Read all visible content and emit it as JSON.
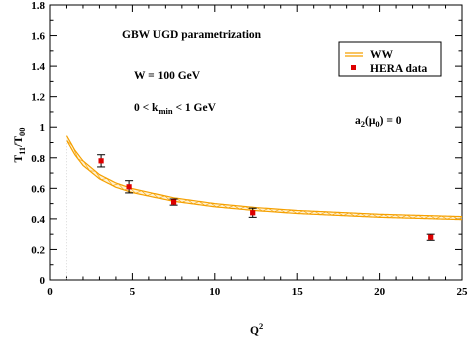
{
  "chart_data": {
    "type": "line",
    "xlim": [
      0,
      25
    ],
    "ylim": [
      0,
      1.8
    ],
    "xticks": [
      0,
      5,
      10,
      15,
      20,
      25
    ],
    "yticks": [
      0,
      0.2,
      0.4,
      0.6,
      0.8,
      1,
      1.2,
      1.4,
      1.6,
      1.8
    ],
    "xtick_labels": [
      "0",
      "5",
      "10",
      "15",
      "20",
      "25"
    ],
    "ytick_labels": [
      "0",
      "0.2",
      "0.4",
      "0.6",
      "0.8",
      "1",
      "1.2",
      "1.4",
      "1.6",
      "1.8"
    ],
    "xlabel": {
      "base": "Q",
      "sup": "2"
    },
    "ylabel": {
      "t1": "T",
      "s1": "11",
      "slash": "/T",
      "s2": "00"
    },
    "grid": false,
    "legend_position": "top-right",
    "annotations": {
      "title": "GBW UGD parametrization",
      "energy": "W = 100 GeV",
      "kmin": {
        "pre": "0 < k",
        "sub": "min",
        "post": " < 1 GeV"
      },
      "a2": {
        "pre": "a",
        "sub": "2",
        "mid": "(μ",
        "sub2": "0",
        "post": ") = 0"
      }
    },
    "series": [
      {
        "name": "WW",
        "kind": "band",
        "color": "#f5a000",
        "x": [
          1.0,
          1.5,
          2.0,
          3.0,
          4.0,
          5.0,
          7.5,
          10.0,
          12.5,
          15.0,
          20.0,
          25.0
        ],
        "upper": [
          0.945,
          0.85,
          0.78,
          0.69,
          0.635,
          0.598,
          0.538,
          0.5,
          0.474,
          0.455,
          0.43,
          0.415
        ],
        "lower": [
          0.915,
          0.82,
          0.75,
          0.662,
          0.607,
          0.572,
          0.515,
          0.479,
          0.454,
          0.435,
          0.41,
          0.395
        ]
      },
      {
        "name": "HERA data",
        "kind": "points",
        "color": "#dd0000",
        "x": [
          3.1,
          4.8,
          7.5,
          12.3,
          23.1
        ],
        "y": [
          0.78,
          0.61,
          0.51,
          0.44,
          0.28
        ],
        "err": [
          0.04,
          0.04,
          0.02,
          0.03,
          0.02
        ]
      }
    ]
  }
}
